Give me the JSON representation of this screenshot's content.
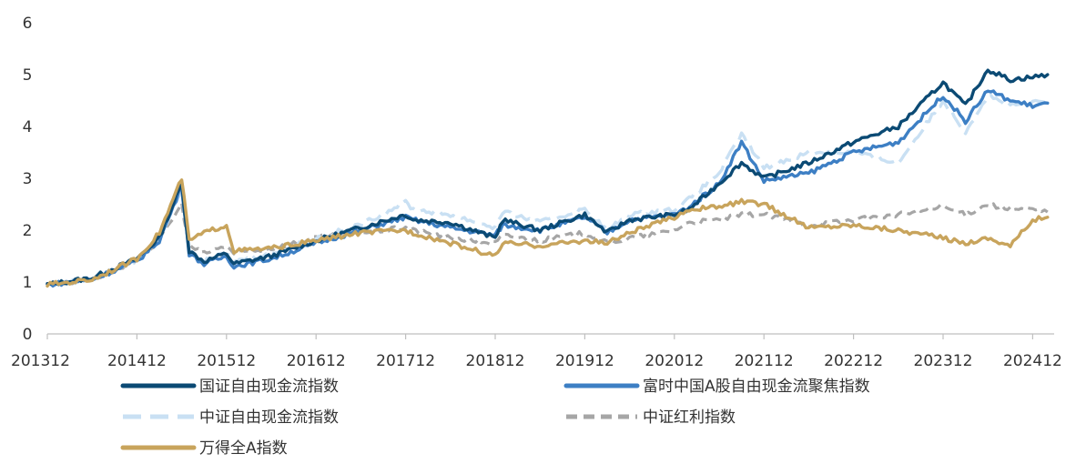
{
  "chart_data": {
    "type": "line",
    "title": "",
    "xlabel": "",
    "ylabel": "",
    "ylim": [
      0,
      6
    ],
    "y_ticks": [
      "0",
      "1",
      "2",
      "3",
      "4",
      "5",
      "6"
    ],
    "x_ticks": [
      "201312",
      "201412",
      "201512",
      "201612",
      "201712",
      "201812",
      "201912",
      "202012",
      "202112",
      "202212",
      "202312",
      "202412"
    ],
    "x": [
      "201312",
      "201406",
      "201412",
      "201503",
      "201506",
      "201507",
      "201509",
      "201512",
      "201601",
      "201606",
      "201612",
      "201706",
      "201712",
      "201801",
      "201806",
      "201812",
      "201901",
      "201906",
      "201912",
      "202003",
      "202006",
      "202012",
      "202102",
      "202106",
      "202109",
      "202112",
      "202206",
      "202212",
      "202306",
      "202312",
      "202403",
      "202406",
      "202409",
      "202412",
      "202502"
    ],
    "grid": false,
    "legend_position": "bottom",
    "series": [
      {
        "name": "国证自由现金流指数",
        "color": "#0b4a74",
        "dash": "solid",
        "values": [
          0.95,
          1.08,
          1.45,
          1.85,
          2.9,
          1.6,
          1.4,
          1.55,
          1.35,
          1.5,
          1.8,
          2.05,
          2.3,
          2.2,
          2.15,
          1.85,
          2.2,
          2.0,
          2.3,
          1.95,
          2.2,
          2.3,
          2.4,
          2.9,
          3.3,
          3.0,
          3.3,
          3.7,
          4.0,
          4.85,
          4.4,
          5.1,
          4.9,
          4.95,
          5.0
        ]
      },
      {
        "name": "富时中国A股自由现金流聚焦指数",
        "color": "#3d7fc4",
        "dash": "solid",
        "values": [
          0.95,
          1.05,
          1.4,
          1.8,
          2.85,
          1.55,
          1.35,
          1.5,
          1.3,
          1.45,
          1.75,
          2.0,
          2.25,
          2.2,
          2.05,
          1.9,
          2.1,
          2.0,
          2.25,
          1.95,
          2.2,
          2.3,
          2.45,
          2.9,
          3.7,
          2.95,
          3.1,
          3.5,
          3.7,
          4.6,
          4.1,
          4.7,
          4.5,
          4.4,
          4.45
        ]
      },
      {
        "name": "中证自由现金流指数",
        "color": "#c9e0f3",
        "dash": "dashed",
        "values": [
          0.95,
          1.06,
          1.42,
          1.82,
          2.8,
          1.58,
          1.4,
          1.55,
          1.4,
          1.55,
          1.85,
          2.1,
          2.55,
          2.4,
          2.3,
          2.05,
          2.35,
          2.15,
          2.4,
          2.0,
          2.3,
          2.4,
          2.6,
          3.1,
          3.85,
          3.2,
          3.5,
          3.5,
          3.3,
          4.5,
          3.9,
          4.6,
          4.4,
          4.45,
          4.5
        ]
      },
      {
        "name": "中证红利指数",
        "color": "#a6a6a6",
        "dash": "dotted",
        "values": [
          0.95,
          1.05,
          1.4,
          1.8,
          2.5,
          1.7,
          1.55,
          1.7,
          1.55,
          1.65,
          1.85,
          1.95,
          2.05,
          2.0,
          1.85,
          1.75,
          1.9,
          1.8,
          1.95,
          1.75,
          1.85,
          2.0,
          2.15,
          2.2,
          2.3,
          2.3,
          2.1,
          2.2,
          2.3,
          2.45,
          2.3,
          2.5,
          2.4,
          2.4,
          2.35
        ]
      },
      {
        "name": "万得全A指数",
        "color": "#c8a45c",
        "dash": "solid",
        "values": [
          0.95,
          1.05,
          1.45,
          1.95,
          3.0,
          1.8,
          1.95,
          2.1,
          1.6,
          1.65,
          1.8,
          1.95,
          2.0,
          1.95,
          1.75,
          1.5,
          1.75,
          1.7,
          1.8,
          1.75,
          1.95,
          2.25,
          2.4,
          2.45,
          2.55,
          2.5,
          2.05,
          2.1,
          2.0,
          1.85,
          1.75,
          1.85,
          1.7,
          2.2,
          2.25
        ]
      }
    ]
  }
}
